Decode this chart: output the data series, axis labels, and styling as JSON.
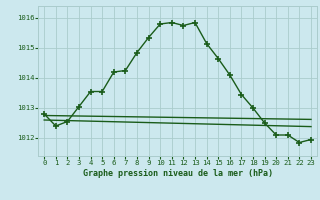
{
  "title": "Graphe pression niveau de la mer (hPa)",
  "background_color": "#cce8ee",
  "grid_color": "#aacccc",
  "line_color": "#1a5c1a",
  "xlim": [
    -0.5,
    23.5
  ],
  "ylim": [
    1011.4,
    1016.4
  ],
  "yticks": [
    1012,
    1013,
    1014,
    1015,
    1016
  ],
  "xticks": [
    0,
    1,
    2,
    3,
    4,
    5,
    6,
    7,
    8,
    9,
    10,
    11,
    12,
    13,
    14,
    15,
    16,
    17,
    18,
    19,
    20,
    21,
    22,
    23
  ],
  "main_line": [
    [
      0,
      1012.8
    ],
    [
      1,
      1012.4
    ],
    [
      2,
      1012.55
    ],
    [
      3,
      1013.05
    ],
    [
      4,
      1013.55
    ],
    [
      5,
      1013.55
    ],
    [
      6,
      1014.2
    ],
    [
      7,
      1014.25
    ],
    [
      8,
      1014.85
    ],
    [
      9,
      1015.35
    ],
    [
      10,
      1015.8
    ],
    [
      11,
      1015.85
    ],
    [
      12,
      1015.75
    ],
    [
      13,
      1015.85
    ],
    [
      14,
      1015.15
    ],
    [
      15,
      1014.65
    ],
    [
      16,
      1014.1
    ],
    [
      17,
      1013.45
    ],
    [
      18,
      1013.0
    ],
    [
      19,
      1012.5
    ],
    [
      20,
      1012.1
    ],
    [
      21,
      1012.1
    ],
    [
      22,
      1011.85
    ],
    [
      23,
      1011.95
    ]
  ],
  "flat_line1": [
    [
      0,
      1012.75
    ],
    [
      23,
      1012.62
    ]
  ],
  "flat_line2": [
    [
      0,
      1012.6
    ],
    [
      23,
      1012.38
    ]
  ],
  "marker": "+",
  "marker_size": 4,
  "line_width": 1.0,
  "title_fontsize": 6.0,
  "tick_fontsize": 5.2
}
